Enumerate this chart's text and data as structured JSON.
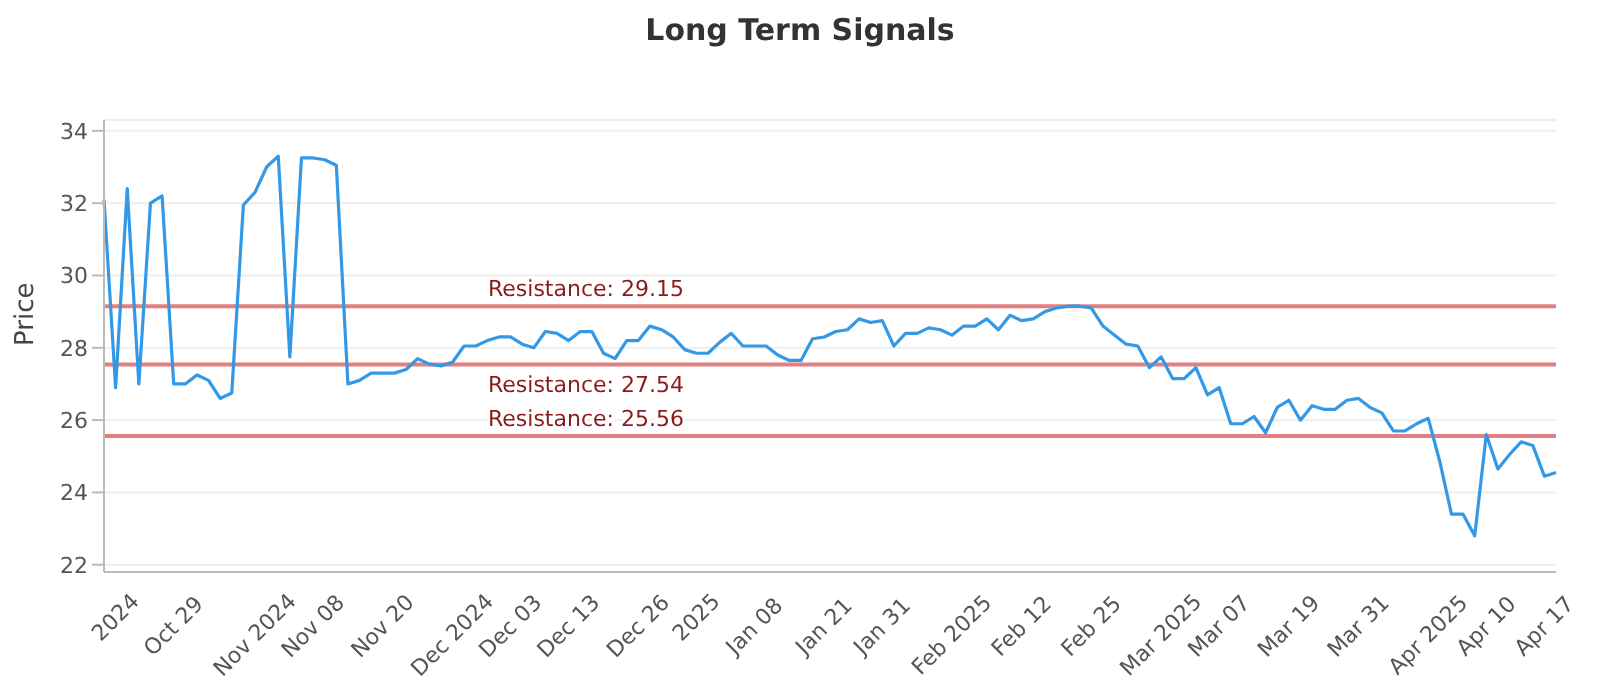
{
  "chart_data": {
    "type": "line",
    "title": "Long Term Signals",
    "ylabel": "Price",
    "categories": [
      null,
      "2024",
      null,
      null,
      null,
      null,
      "Oct 29",
      null,
      null,
      null,
      null,
      null,
      null,
      "Nov 2024",
      null,
      null,
      null,
      null,
      "Nov 08",
      null,
      null,
      null,
      null,
      null,
      "Nov 20",
      null,
      null,
      null,
      null,
      null,
      "Dec 2024",
      null,
      null,
      null,
      null,
      "Dec 03",
      null,
      null,
      null,
      null,
      "Dec 13",
      null,
      null,
      null,
      null,
      null,
      "Dec 26",
      null,
      null,
      null,
      null,
      "2025",
      null,
      null,
      null,
      null,
      "Jan 08",
      null,
      null,
      null,
      null,
      null,
      "Jan 21",
      null,
      null,
      null,
      null,
      "Jan 31",
      null,
      null,
      null,
      null,
      null,
      "Feb 2025",
      null,
      null,
      null,
      null,
      null,
      "Feb 12",
      null,
      null,
      null,
      null,
      null,
      "Feb 25",
      null,
      null,
      null,
      null,
      null,
      "Mar 2025",
      null,
      null,
      null,
      null,
      "Mar 07",
      null,
      null,
      null,
      null,
      null,
      "Mar 19",
      null,
      null,
      null,
      null,
      null,
      "Mar 31",
      null,
      null,
      null,
      null,
      null,
      "Apr 2025",
      null,
      null,
      null,
      null,
      "Apr 10",
      null,
      null,
      null,
      null,
      "Apr 17",
      null
    ],
    "series": [
      {
        "color": "#3399e6",
        "values": [
          32.1,
          26.9,
          32.4,
          27.0,
          32.0,
          32.2,
          27.0,
          27.0,
          27.25,
          27.1,
          26.6,
          26.75,
          31.95,
          32.3,
          33.0,
          33.3,
          27.75,
          33.25,
          33.25,
          33.2,
          33.05,
          27.0,
          27.1,
          27.3,
          27.3,
          27.3,
          27.4,
          27.7,
          27.55,
          27.5,
          27.6,
          28.05,
          28.05,
          28.2,
          28.3,
          28.3,
          28.1,
          28.0,
          28.45,
          28.4,
          28.2,
          28.45,
          28.45,
          27.85,
          27.7,
          28.2,
          28.2,
          28.6,
          28.5,
          28.3,
          27.95,
          27.85,
          27.85,
          28.15,
          28.4,
          28.05,
          28.05,
          28.05,
          27.8,
          27.65,
          27.65,
          28.25,
          28.3,
          28.45,
          28.5,
          28.8,
          28.7,
          28.75,
          28.05,
          28.4,
          28.4,
          28.55,
          28.5,
          28.35,
          28.6,
          28.6,
          28.8,
          28.5,
          28.9,
          28.75,
          28.8,
          29.0,
          29.1,
          29.15,
          29.15,
          29.1,
          28.6,
          28.35,
          28.1,
          28.05,
          27.45,
          27.75,
          27.15,
          27.15,
          27.45,
          26.7,
          26.9,
          25.9,
          25.9,
          26.1,
          25.65,
          26.35,
          26.55,
          26.0,
          26.4,
          26.3,
          26.3,
          26.55,
          26.6,
          26.35,
          26.2,
          25.7,
          25.7,
          25.9,
          26.05,
          24.85,
          23.4,
          23.4,
          22.8,
          25.6,
          24.65,
          25.05,
          25.4,
          25.3,
          24.45,
          24.55
        ]
      }
    ],
    "ylim": [
      21.8,
      34.3
    ],
    "yticks": [
      22,
      24,
      26,
      28,
      30,
      32,
      34
    ],
    "grid": "y",
    "marker": "none",
    "ref_lines": [
      {
        "axis": "y",
        "value": 29.15,
        "label": "Resistance: 29.15",
        "color": "#e08080"
      },
      {
        "axis": "y",
        "value": 27.54,
        "label": "Resistance: 27.54",
        "color": "#e08080"
      },
      {
        "axis": "y",
        "value": 25.56,
        "label": "Resistance: 25.56",
        "color": "#e08080"
      }
    ]
  }
}
